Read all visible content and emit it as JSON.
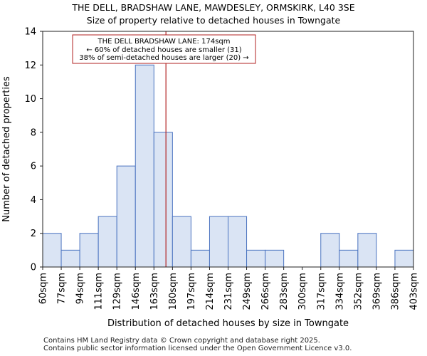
{
  "chart_data": {
    "type": "bar",
    "title": "THE DELL, BRADSHAW LANE, MAWDESLEY, ORMSKIRK, L40 3SE",
    "subtitle": "Size of property relative to detached houses in Towngate",
    "xlabel": "Distribution of detached houses by size in Towngate",
    "ylabel": "Number of detached properties",
    "bin_edges": [
      60,
      77,
      94,
      111,
      129,
      146,
      163,
      180,
      197,
      214,
      231,
      249,
      266,
      283,
      300,
      317,
      334,
      352,
      369,
      386,
      403
    ],
    "x_tick_labels": [
      "60sqm",
      "77sqm",
      "94sqm",
      "111sqm",
      "129sqm",
      "146sqm",
      "163sqm",
      "180sqm",
      "197sqm",
      "214sqm",
      "231sqm",
      "249sqm",
      "266sqm",
      "283sqm",
      "300sqm",
      "317sqm",
      "334sqm",
      "352sqm",
      "369sqm",
      "386sqm",
      "403sqm"
    ],
    "values": [
      2,
      1,
      2,
      3,
      6,
      12,
      8,
      3,
      1,
      3,
      3,
      1,
      1,
      0,
      0,
      2,
      1,
      2,
      0,
      1
    ],
    "ylim": [
      0,
      14
    ],
    "y_ticks": [
      0,
      2,
      4,
      6,
      8,
      10,
      12,
      14
    ],
    "marker_value": 174,
    "grid": false,
    "colors": {
      "bar_fill": "#dae4f4",
      "bar_edge": "#4a73c0",
      "marker": "#b22222"
    },
    "annotation": [
      "THE DELL BRADSHAW LANE: 174sqm",
      "← 60% of detached houses are smaller (31)",
      "38% of semi-detached houses are larger (20) →"
    ]
  },
  "footer": {
    "line1": "Contains HM Land Registry data © Crown copyright and database right 2025.",
    "line2": "Contains public sector information licensed under the Open Government Licence v3.0."
  }
}
